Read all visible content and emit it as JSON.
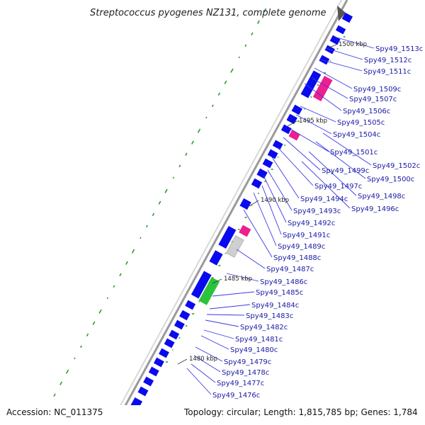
{
  "title": "Streptococcus pyogenes NZ131, complete genome",
  "footer": {
    "accession": "Accession: NC_011375",
    "summary": "Topology: circular; Length: 1,815,785 bp; Genes: 1,784"
  },
  "colors": {
    "cds": "#0a0aee",
    "rrna": "#ee1f8f",
    "trna": "#2cc33a",
    "other": "#cfcfcf",
    "label": "#1a1aa6",
    "leader": "#3a3ae8",
    "gc_skew": "#2e9a2e",
    "backbone": "#8c8c8c"
  },
  "kbp_ticks": [
    "1500 kbp",
    "1495 kbp",
    "1490 kbp",
    "1485 kbp",
    "1480 kbp"
  ],
  "gene_labels": [
    "Spy49_1513c",
    "Spy49_1512c",
    "Spy49_1511c",
    "Spy49_1509c",
    "Spy49_1507c",
    "Spy49_1506c",
    "Spy49_1505c",
    "Spy49_1504c",
    "Spy49_1501c",
    "Spy49_1502c",
    "Spy49_1499c",
    "Spy49_1500c",
    "Spy49_1497c",
    "Spy49_1498c",
    "Spy49_1494c",
    "Spy49_1496c",
    "Spy49_1493c",
    "Spy49_1492c",
    "Spy49_1491c",
    "Spy49_1489c",
    "Spy49_1488c",
    "Spy49_1487c",
    "Spy49_1486c",
    "Spy49_1485c",
    "Spy49_1484c",
    "Spy49_1483c",
    "Spy49_1482c",
    "Spy49_1481c",
    "Spy49_1480c",
    "Spy49_1479c",
    "Spy49_1478c",
    "Spy49_1477c",
    "Spy49_1476c"
  ]
}
